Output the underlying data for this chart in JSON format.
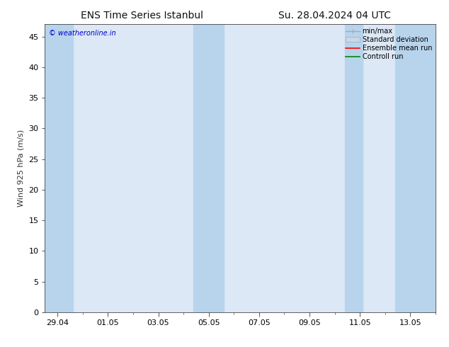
{
  "title_left": "ENS Time Series Istanbul",
  "title_right": "Su. 28.04.2024 04 UTC",
  "ylabel": "Wind 925 hPa (m/s)",
  "watermark": "© weatheronline.in",
  "watermark_color": "#0000cc",
  "ylim": [
    0,
    47
  ],
  "yticks": [
    0,
    5,
    10,
    15,
    20,
    25,
    30,
    35,
    40,
    45
  ],
  "xtick_labels": [
    "29.04",
    "01.05",
    "03.05",
    "05.05",
    "07.05",
    "09.05",
    "11.05",
    "13.05"
  ],
  "xtick_positions": [
    0,
    2,
    4,
    6,
    8,
    10,
    12,
    14
  ],
  "xlim": [
    -0.5,
    15.0
  ],
  "shaded_bands": [
    {
      "x_start": -0.5,
      "x_end": 0.6
    },
    {
      "x_start": 5.4,
      "x_end": 6.6
    },
    {
      "x_start": 11.4,
      "x_end": 12.1
    },
    {
      "x_start": 13.4,
      "x_end": 15.0
    }
  ],
  "plot_bg_color": "#dce8f5",
  "shade_color": "#b8d4ed",
  "bg_color": "#ffffff",
  "minmax_color": "#aaaaaa",
  "std_color": "#c8d8e8",
  "ensemble_color": "#ff0000",
  "control_color": "#008800",
  "title_fontsize": 10,
  "axis_fontsize": 8,
  "tick_fontsize": 8,
  "legend_fontsize": 7
}
